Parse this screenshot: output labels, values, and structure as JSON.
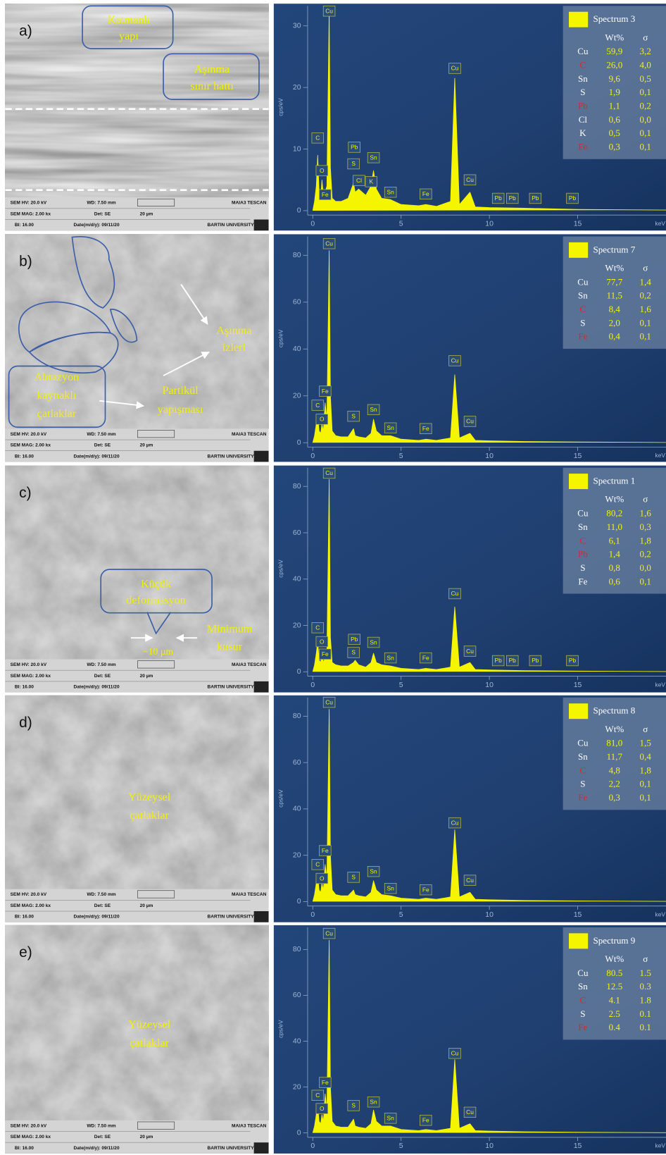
{
  "figure": {
    "panels": [
      {
        "label": "a)",
        "annotations": [
          {
            "lines": [
              "Katmanlı",
              "yapı"
            ]
          },
          {
            "lines": [
              "Aşınma",
              "sınır hattı"
            ]
          }
        ]
      },
      {
        "label": "b)",
        "annotations": [
          {
            "lines": [
              "Aşınma",
              "izleri"
            ]
          },
          {
            "lines": [
              "Partikül",
              "yapışması"
            ]
          },
          {
            "lines": [
              "Abrazyon",
              "kaynaklı",
              "çatlaklar"
            ]
          }
        ]
      },
      {
        "label": "c)",
        "annotations": [
          {
            "lines": [
              "Küçük",
              "deformasyon"
            ]
          },
          {
            "lines": [
              "Minimum",
              "kusur"
            ]
          },
          {
            "lines": [
              "~10 µm"
            ]
          }
        ]
      },
      {
        "label": "d)",
        "annotations": [
          {
            "lines": [
              "Yüzeysel",
              "çatlaklar"
            ]
          }
        ]
      },
      {
        "label": "e)",
        "annotations": [
          {
            "lines": [
              "Yüzeysel",
              "çatlaklar"
            ]
          }
        ]
      }
    ],
    "sem_info": {
      "hv": "SEM HV: 20.0 kV",
      "wd": "WD: 7.50 mm",
      "brand": "MAIA3 TESCAN",
      "mag": "SEM MAG: 2.00 kx",
      "det": "Det: SE",
      "scale": "20 µm",
      "bi": "BI: 16.00",
      "date": "Date(m/d/y): 09/11/20",
      "org": "BARTIN UNIVERSITY"
    }
  },
  "chart_data": [
    {
      "type": "line",
      "xlabel": "keV",
      "ylabel": "cps/eV",
      "color": "#f5f500",
      "xlim": [
        0,
        20
      ],
      "xticks": [
        0,
        5,
        10,
        15
      ],
      "ylim": [
        0,
        33.6
      ],
      "yticks": [
        0,
        10,
        20,
        30
      ],
      "x": [
        0,
        0.1,
        0.2,
        0.28,
        0.36,
        0.45,
        0.52,
        0.6,
        0.7,
        0.8,
        0.93,
        1.0,
        1.1,
        1.3,
        1.6,
        2.0,
        2.31,
        2.4,
        2.6,
        3.0,
        3.3,
        3.44,
        3.6,
        3.9,
        4.4,
        5,
        6,
        6.4,
        7,
        7.8,
        8.04,
        8.3,
        8.9,
        9.2,
        10,
        12,
        15,
        20
      ],
      "values": [
        0,
        1.5,
        4,
        9,
        3,
        2,
        5,
        2.5,
        3,
        4,
        32.5,
        7,
        2,
        1.5,
        1.5,
        2,
        4.5,
        3,
        3.5,
        2.5,
        4,
        6.5,
        3.5,
        2,
        1.8,
        1,
        0.8,
        1,
        0.7,
        1.5,
        21.5,
        1,
        3,
        0.6,
        0.5,
        0.4,
        0.2,
        0.1
      ],
      "peak_labels": [
        {
          "text": "Cu",
          "x": 0.93,
          "y": 32.4
        },
        {
          "text": "C",
          "x": 0.28,
          "y": 11.8
        },
        {
          "text": "O",
          "x": 0.52,
          "y": 6.5
        },
        {
          "text": "Fe",
          "x": 0.7,
          "y": 2.6
        },
        {
          "text": "Pb",
          "x": 2.35,
          "y": 10.3
        },
        {
          "text": "S",
          "x": 2.31,
          "y": 7.6
        },
        {
          "text": "Cl",
          "x": 2.62,
          "y": 4.9
        },
        {
          "text": "K",
          "x": 3.31,
          "y": 4.7
        },
        {
          "text": "Sn",
          "x": 3.44,
          "y": 8.6
        },
        {
          "text": "Sn",
          "x": 4.4,
          "y": 3.0
        },
        {
          "text": "Fe",
          "x": 6.4,
          "y": 2.7
        },
        {
          "text": "Cu",
          "x": 8.04,
          "y": 23.1
        },
        {
          "text": "Cu",
          "x": 8.9,
          "y": 5.0
        },
        {
          "text": "Pb",
          "x": 10.5,
          "y": 2.0
        },
        {
          "text": "Pb",
          "x": 11.3,
          "y": 2.0
        },
        {
          "text": "Pb",
          "x": 12.6,
          "y": 2.0
        },
        {
          "text": "Pb",
          "x": 14.7,
          "y": 2.0
        }
      ],
      "legend": {
        "title": "Spectrum 3",
        "columns": [
          "Wt%",
          "σ"
        ],
        "value_color": "#f5f500",
        "rows": [
          {
            "element": "Cu",
            "wt": "59,9",
            "sigma": "3,2",
            "color": "#ffffff"
          },
          {
            "element": "C",
            "wt": "26,0",
            "sigma": "4,0",
            "color": "#e8202a"
          },
          {
            "element": "Sn",
            "wt": "9,6",
            "sigma": "0,5",
            "color": "#ffffff"
          },
          {
            "element": "S",
            "wt": "1,9",
            "sigma": "0,1",
            "color": "#ffffff"
          },
          {
            "element": "Pb",
            "wt": "1,1",
            "sigma": "0,2",
            "color": "#e8202a"
          },
          {
            "element": "Cl",
            "wt": "0,6",
            "sigma": "0,0",
            "color": "#ffffff"
          },
          {
            "element": "K",
            "wt": "0,5",
            "sigma": "0,1",
            "color": "#ffffff"
          },
          {
            "element": "Fe",
            "wt": "0,3",
            "sigma": "0,1",
            "color": "#e8202a"
          }
        ]
      }
    },
    {
      "type": "line",
      "xlabel": "keV",
      "ylabel": "cps/eV",
      "color": "#f5f500",
      "xlim": [
        0,
        20
      ],
      "xticks": [
        0,
        5,
        10,
        15
      ],
      "ylim": [
        0,
        89
      ],
      "yticks": [
        0,
        20,
        40,
        60,
        80
      ],
      "x": [
        0,
        0.1,
        0.2,
        0.28,
        0.36,
        0.45,
        0.52,
        0.6,
        0.7,
        0.8,
        0.93,
        1.0,
        1.1,
        1.3,
        1.6,
        2.0,
        2.31,
        2.4,
        2.6,
        3.0,
        3.3,
        3.44,
        3.6,
        3.9,
        4.4,
        5,
        6,
        6.4,
        7,
        7.8,
        8.04,
        8.3,
        8.9,
        9.2,
        10,
        12,
        15,
        20
      ],
      "values": [
        0,
        3,
        8,
        12,
        5,
        4,
        8,
        5,
        17,
        10,
        82,
        20,
        5,
        3,
        2.5,
        2.5,
        6,
        3,
        2.5,
        2,
        4,
        10,
        5,
        3,
        3,
        1.5,
        1,
        1.5,
        1,
        2,
        29,
        2,
        4,
        1,
        0.8,
        0.5,
        0.3,
        0.1
      ],
      "peak_labels": [
        {
          "text": "Cu",
          "x": 0.93,
          "y": 85
        },
        {
          "text": "C",
          "x": 0.28,
          "y": 16
        },
        {
          "text": "O",
          "x": 0.52,
          "y": 10
        },
        {
          "text": "Fe",
          "x": 0.7,
          "y": 22
        },
        {
          "text": "S",
          "x": 2.31,
          "y": 11.3
        },
        {
          "text": "Sn",
          "x": 3.44,
          "y": 14.1
        },
        {
          "text": "Sn",
          "x": 4.4,
          "y": 6.3
        },
        {
          "text": "Fe",
          "x": 6.4,
          "y": 6.0
        },
        {
          "text": "Cu",
          "x": 8.04,
          "y": 35
        },
        {
          "text": "Cu",
          "x": 8.9,
          "y": 9.1
        }
      ],
      "legend": {
        "title": "Spectrum 7",
        "columns": [
          "Wt%",
          "σ"
        ],
        "value_color": "#f5f500",
        "rows": [
          {
            "element": "Cu",
            "wt": "77,7",
            "sigma": "1,4",
            "color": "#ffffff"
          },
          {
            "element": "Sn",
            "wt": "11,5",
            "sigma": "0,2",
            "color": "#ffffff"
          },
          {
            "element": "C",
            "wt": "8,4",
            "sigma": "1,6",
            "color": "#e8202a"
          },
          {
            "element": "S",
            "wt": "2,0",
            "sigma": "0,1",
            "color": "#ffffff"
          },
          {
            "element": "Fe",
            "wt": "0,4",
            "sigma": "0,1",
            "color": "#e8202a"
          }
        ]
      }
    },
    {
      "type": "line",
      "xlabel": "keV",
      "ylabel": "cps/eV",
      "color": "#f5f500",
      "xlim": [
        0,
        20
      ],
      "xticks": [
        0,
        5,
        10,
        15
      ],
      "ylim": [
        0,
        89
      ],
      "yticks": [
        0,
        20,
        40,
        60,
        80
      ],
      "x": [
        0,
        0.1,
        0.2,
        0.28,
        0.36,
        0.45,
        0.52,
        0.6,
        0.7,
        0.8,
        0.93,
        1.0,
        1.1,
        1.3,
        1.6,
        2.0,
        2.31,
        2.4,
        2.6,
        3.0,
        3.3,
        3.44,
        3.6,
        3.9,
        4.4,
        5,
        6,
        6.4,
        7,
        7.8,
        8.04,
        8.3,
        8.9,
        9.2,
        10,
        12,
        15,
        20
      ],
      "values": [
        0,
        3,
        8,
        13,
        5,
        4,
        9,
        4,
        6,
        8,
        83,
        15,
        4,
        3,
        2.5,
        2.5,
        4,
        5,
        3,
        2,
        4,
        8,
        4,
        3,
        2.5,
        1.5,
        1,
        1.5,
        1,
        2,
        28,
        2,
        4,
        1,
        0.8,
        0.5,
        0.3,
        0.1
      ],
      "peak_labels": [
        {
          "text": "Cu",
          "x": 0.93,
          "y": 85.7
        },
        {
          "text": "C",
          "x": 0.28,
          "y": 19
        },
        {
          "text": "O",
          "x": 0.52,
          "y": 13
        },
        {
          "text": "Fe",
          "x": 0.7,
          "y": 7.6
        },
        {
          "text": "Pb",
          "x": 2.35,
          "y": 14
        },
        {
          "text": "S",
          "x": 2.31,
          "y": 8.3
        },
        {
          "text": "Sn",
          "x": 3.44,
          "y": 12.7
        },
        {
          "text": "Sn",
          "x": 4.4,
          "y": 6
        },
        {
          "text": "Fe",
          "x": 6.4,
          "y": 6
        },
        {
          "text": "Cu",
          "x": 8.04,
          "y": 33.7
        },
        {
          "text": "Cu",
          "x": 8.9,
          "y": 8.9
        },
        {
          "text": "Pb",
          "x": 10.5,
          "y": 4.8
        },
        {
          "text": "Pb",
          "x": 11.3,
          "y": 4.8
        },
        {
          "text": "Pb",
          "x": 12.6,
          "y": 4.8
        },
        {
          "text": "Pb",
          "x": 14.7,
          "y": 4.8
        }
      ],
      "legend": {
        "title": "Spectrum 1",
        "columns": [
          "Wt%",
          "σ"
        ],
        "value_color": "#f5f500",
        "rows": [
          {
            "element": "Cu",
            "wt": "80,2",
            "sigma": "1,6",
            "color": "#ffffff"
          },
          {
            "element": "Sn",
            "wt": "11,0",
            "sigma": "0,3",
            "color": "#ffffff"
          },
          {
            "element": "C",
            "wt": "6,1",
            "sigma": "1,8",
            "color": "#e8202a"
          },
          {
            "element": "Pb",
            "wt": "1,4",
            "sigma": "0,2",
            "color": "#e8202a"
          },
          {
            "element": "S",
            "wt": "0,8",
            "sigma": "0,0",
            "color": "#ffffff"
          },
          {
            "element": "Fe",
            "wt": "0,6",
            "sigma": "0,1",
            "color": "#ffffff"
          }
        ]
      }
    },
    {
      "type": "line",
      "xlabel": "keV",
      "ylabel": "cps/eV",
      "color": "#f5f500",
      "xlim": [
        0,
        20
      ],
      "xticks": [
        0,
        5,
        10,
        15
      ],
      "ylim": [
        0,
        89
      ],
      "yticks": [
        0,
        20,
        40,
        60,
        80
      ],
      "x": [
        0,
        0.1,
        0.2,
        0.28,
        0.36,
        0.45,
        0.52,
        0.6,
        0.7,
        0.8,
        0.93,
        1.0,
        1.1,
        1.3,
        1.6,
        2.0,
        2.31,
        2.4,
        2.6,
        3.0,
        3.3,
        3.44,
        3.6,
        3.9,
        4.4,
        5,
        6,
        6.4,
        7,
        7.8,
        8.04,
        8.3,
        8.9,
        9.2,
        10,
        12,
        15,
        20
      ],
      "values": [
        0,
        3,
        8,
        11,
        5,
        4,
        8,
        5,
        16,
        10,
        83,
        20,
        5,
        3,
        2.5,
        2.5,
        5,
        3,
        2.5,
        2,
        4,
        9,
        5,
        3,
        2.5,
        1.5,
        1,
        1.5,
        1,
        2,
        31,
        2,
        4,
        1,
        0.8,
        0.5,
        0.3,
        0.1
      ],
      "peak_labels": [
        {
          "text": "Cu",
          "x": 0.93,
          "y": 86
        },
        {
          "text": "C",
          "x": 0.28,
          "y": 16
        },
        {
          "text": "O",
          "x": 0.52,
          "y": 10
        },
        {
          "text": "Fe",
          "x": 0.7,
          "y": 22
        },
        {
          "text": "S",
          "x": 2.31,
          "y": 10.5
        },
        {
          "text": "Sn",
          "x": 3.44,
          "y": 13
        },
        {
          "text": "Sn",
          "x": 4.4,
          "y": 5.7
        },
        {
          "text": "Fe",
          "x": 6.4,
          "y": 5.1
        },
        {
          "text": "Cu",
          "x": 8.04,
          "y": 34
        },
        {
          "text": "Cu",
          "x": 8.9,
          "y": 9.2
        }
      ],
      "legend": {
        "title": "Spectrum 8",
        "columns": [
          "Wt%",
          "σ"
        ],
        "value_color": "#f5f500",
        "rows": [
          {
            "element": "Cu",
            "wt": "81,0",
            "sigma": "1,5",
            "color": "#ffffff"
          },
          {
            "element": "Sn",
            "wt": "11,7",
            "sigma": "0,4",
            "color": "#ffffff"
          },
          {
            "element": "C",
            "wt": "4,8",
            "sigma": "1,8",
            "color": "#e8202a"
          },
          {
            "element": "S",
            "wt": "2,2",
            "sigma": "0,1",
            "color": "#ffffff"
          },
          {
            "element": "Fe",
            "wt": "0,3",
            "sigma": "0,1",
            "color": "#e8202a"
          }
        ]
      }
    },
    {
      "type": "line",
      "xlabel": "keV",
      "ylabel": "cps/eV",
      "color": "#f5f500",
      "xlim": [
        0,
        20
      ],
      "xticks": [
        0,
        5,
        10,
        15
      ],
      "ylim": [
        0,
        90.6
      ],
      "yticks": [
        0,
        20,
        40,
        60,
        80
      ],
      "x": [
        0,
        0.1,
        0.2,
        0.28,
        0.36,
        0.45,
        0.52,
        0.6,
        0.7,
        0.8,
        0.93,
        1.0,
        1.1,
        1.3,
        1.6,
        2.0,
        2.31,
        2.4,
        2.6,
        3.0,
        3.3,
        3.44,
        3.6,
        3.9,
        4.4,
        5,
        6,
        6.4,
        7,
        7.8,
        8.04,
        8.3,
        8.9,
        9.2,
        10,
        12,
        15,
        20
      ],
      "values": [
        0,
        3,
        8,
        12,
        5,
        4,
        8,
        5,
        17,
        10,
        84,
        20,
        5,
        3,
        2.5,
        2.5,
        6,
        3,
        2.5,
        2,
        4,
        10,
        5,
        3,
        3,
        1.5,
        1,
        1.5,
        1,
        2,
        32,
        2,
        4,
        1,
        0.8,
        0.5,
        0.3,
        0.1
      ],
      "peak_labels": [
        {
          "text": "Cu",
          "x": 0.93,
          "y": 87
        },
        {
          "text": "C",
          "x": 0.28,
          "y": 16.4
        },
        {
          "text": "O",
          "x": 0.52,
          "y": 10.6
        },
        {
          "text": "Fe",
          "x": 0.7,
          "y": 22
        },
        {
          "text": "S",
          "x": 2.31,
          "y": 11.9
        },
        {
          "text": "Sn",
          "x": 3.44,
          "y": 13.5
        },
        {
          "text": "Sn",
          "x": 4.4,
          "y": 6.4
        },
        {
          "text": "Fe",
          "x": 6.4,
          "y": 5.5
        },
        {
          "text": "Cu",
          "x": 8.04,
          "y": 34.7
        },
        {
          "text": "Cu",
          "x": 8.9,
          "y": 9
        }
      ],
      "legend": {
        "title": "Spectrum 9",
        "columns": [
          "Wt%",
          "σ"
        ],
        "value_color": "#f5f500",
        "rows": [
          {
            "element": "Cu",
            "wt": "80.5",
            "sigma": "1.5",
            "color": "#ffffff"
          },
          {
            "element": "Sn",
            "wt": "12.5",
            "sigma": "0.3",
            "color": "#ffffff"
          },
          {
            "element": "C",
            "wt": "4.1",
            "sigma": "1.8",
            "color": "#e8202a"
          },
          {
            "element": "S",
            "wt": "2.5",
            "sigma": "0.1",
            "color": "#ffffff"
          },
          {
            "element": "Fe",
            "wt": "0.4",
            "sigma": "0.1",
            "color": "#e8202a"
          }
        ]
      }
    }
  ]
}
